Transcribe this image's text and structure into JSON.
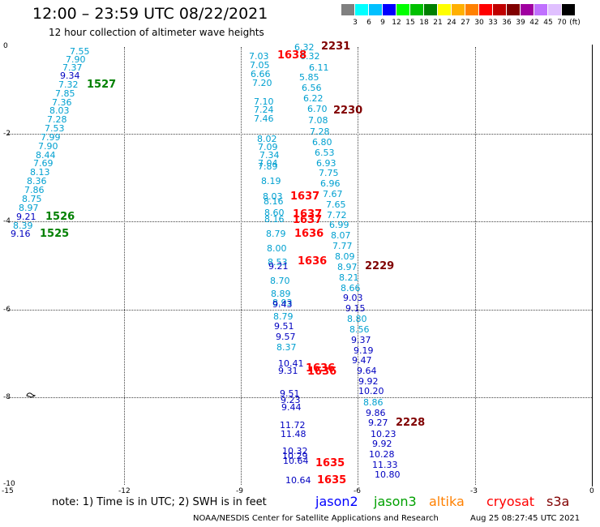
{
  "header": {
    "title": "12:00 – 23:59 UTC 08/22/2021",
    "subtitle": "12 hour collection of altimeter wave heights"
  },
  "legend": {
    "unit": "(ft)",
    "colors": [
      "#808080",
      "#00ffff",
      "#00c0ff",
      "#0000ff",
      "#00ff00",
      "#00c000",
      "#008000",
      "#ffff00",
      "#ffb000",
      "#ff8000",
      "#ff0000",
      "#c00000",
      "#800000",
      "#a000a0",
      "#c070ff",
      "#e0c0ff",
      "#000000"
    ],
    "labels": [
      "3",
      "6",
      "9",
      "12",
      "15",
      "18",
      "21",
      "24",
      "27",
      "30",
      "33",
      "36",
      "39",
      "42",
      "45",
      "70"
    ]
  },
  "axes": {
    "y_ticks": [
      "0",
      "-2",
      "-4",
      "-6",
      "-8",
      "-10"
    ],
    "x_ticks": [
      "-15",
      "-12",
      "-9",
      "-6",
      "-3",
      "0"
    ]
  },
  "observations": [
    {
      "text": "7.55",
      "color": "#00a0d0"
    },
    {
      "text": "7.90",
      "color": "#00a0d0"
    },
    {
      "text": "7.37",
      "color": "#00a0d0"
    },
    {
      "text": "9.34",
      "color": "#0000c0"
    },
    {
      "text": "7.32",
      "color": "#00a0d0"
    },
    {
      "text": "7.85",
      "color": "#00a0d0"
    },
    {
      "text": "7.36",
      "color": "#00a0d0"
    },
    {
      "text": "8.03",
      "color": "#00a0d0"
    },
    {
      "text": "7.28",
      "color": "#00a0d0"
    },
    {
      "text": "7.53",
      "color": "#00a0d0"
    },
    {
      "text": "7.99",
      "color": "#00a0d0"
    },
    {
      "text": "7.90",
      "color": "#00a0d0"
    },
    {
      "text": "8.44",
      "color": "#00a0d0"
    },
    {
      "text": "7.69",
      "color": "#00a0d0"
    },
    {
      "text": "8.13",
      "color": "#00a0d0"
    },
    {
      "text": "8.36",
      "color": "#00a0d0"
    },
    {
      "text": "7.86",
      "color": "#00a0d0"
    },
    {
      "text": "8.75",
      "color": "#00a0d0"
    },
    {
      "text": "8.97",
      "color": "#00a0d0"
    },
    {
      "text": "9.21",
      "color": "#0000c0"
    },
    {
      "text": "8.39",
      "color": "#00a0d0"
    },
    {
      "text": "9.16",
      "color": "#0000c0"
    },
    {
      "text": "6.32",
      "color": "#00a0d0"
    },
    {
      "text": "7.03",
      "color": "#00a0d0"
    },
    {
      "text": "6.32",
      "color": "#00a0d0"
    },
    {
      "text": "7.05",
      "color": "#00a0d0"
    },
    {
      "text": "6.11",
      "color": "#00a0d0"
    },
    {
      "text": "6.66",
      "color": "#00a0d0"
    },
    {
      "text": "5.85",
      "color": "#00a0d0"
    },
    {
      "text": "7.20",
      "color": "#00a0d0"
    },
    {
      "text": "6.56",
      "color": "#00a0d0"
    },
    {
      "text": "6.22",
      "color": "#00a0d0"
    },
    {
      "text": "7.10",
      "color": "#00a0d0"
    },
    {
      "text": "7.24",
      "color": "#00a0d0"
    },
    {
      "text": "6.70",
      "color": "#00a0d0"
    },
    {
      "text": "7.46",
      "color": "#00a0d0"
    },
    {
      "text": "7.08",
      "color": "#00a0d0"
    },
    {
      "text": "7.28",
      "color": "#00a0d0"
    },
    {
      "text": "8.02",
      "color": "#00a0d0"
    },
    {
      "text": "6.80",
      "color": "#00a0d0"
    },
    {
      "text": "7.09",
      "color": "#00a0d0"
    },
    {
      "text": "7.34",
      "color": "#00a0d0"
    },
    {
      "text": "6.53",
      "color": "#00a0d0"
    },
    {
      "text": "7.04",
      "color": "#00a0d0"
    },
    {
      "text": "6.93",
      "color": "#00a0d0"
    },
    {
      "text": "7.89",
      "color": "#00a0d0"
    },
    {
      "text": "7.75",
      "color": "#00a0d0"
    },
    {
      "text": "8.19",
      "color": "#00a0d0"
    },
    {
      "text": "6.96",
      "color": "#00a0d0"
    },
    {
      "text": "8.03",
      "color": "#00a0d0"
    },
    {
      "text": "7.67",
      "color": "#00a0d0"
    },
    {
      "text": "8.16",
      "color": "#00a0d0"
    },
    {
      "text": "7.65",
      "color": "#00a0d0"
    },
    {
      "text": "8.60",
      "color": "#00a0d0"
    },
    {
      "text": "7.72",
      "color": "#00a0d0"
    },
    {
      "text": "8.16",
      "color": "#00a0d0"
    },
    {
      "text": "6.99",
      "color": "#00a0d0"
    },
    {
      "text": "8.79",
      "color": "#00a0d0"
    },
    {
      "text": "8.07",
      "color": "#00a0d0"
    },
    {
      "text": "7.77",
      "color": "#00a0d0"
    },
    {
      "text": "8.00",
      "color": "#00a0d0"
    },
    {
      "text": "8.09",
      "color": "#00a0d0"
    },
    {
      "text": "8.53",
      "color": "#00a0d0"
    },
    {
      "text": "9.21",
      "color": "#0000c0"
    },
    {
      "text": "8.97",
      "color": "#00a0d0"
    },
    {
      "text": "8.21",
      "color": "#00a0d0"
    },
    {
      "text": "8.70",
      "color": "#00a0d0"
    },
    {
      "text": "8.66",
      "color": "#00a0d0"
    },
    {
      "text": "8.89",
      "color": "#00a0d0"
    },
    {
      "text": "9.03",
      "color": "#0000c0"
    },
    {
      "text": "8.93",
      "color": "#00a0d0"
    },
    {
      "text": "9.43",
      "color": "#0000c0"
    },
    {
      "text": "9.15",
      "color": "#0000c0"
    },
    {
      "text": "8.79",
      "color": "#00a0d0"
    },
    {
      "text": "8.80",
      "color": "#00a0d0"
    },
    {
      "text": "9.51",
      "color": "#0000c0"
    },
    {
      "text": "8.56",
      "color": "#00a0d0"
    },
    {
      "text": "9.57",
      "color": "#0000c0"
    },
    {
      "text": "9.37",
      "color": "#0000c0"
    },
    {
      "text": "8.37",
      "color": "#00a0d0"
    },
    {
      "text": "9.19",
      "color": "#0000c0"
    },
    {
      "text": "10.41",
      "color": "#0000c0"
    },
    {
      "text": "9.47",
      "color": "#0000c0"
    },
    {
      "text": "9.31",
      "color": "#0000c0"
    },
    {
      "text": "9.64",
      "color": "#0000c0"
    },
    {
      "text": "9.92",
      "color": "#0000c0"
    },
    {
      "text": "10.20",
      "color": "#0000c0"
    },
    {
      "text": "9.51",
      "color": "#0000c0"
    },
    {
      "text": "9.23",
      "color": "#0000c0"
    },
    {
      "text": "8.86",
      "color": "#00a0d0"
    },
    {
      "text": "9.44",
      "color": "#0000c0"
    },
    {
      "text": "9.86",
      "color": "#0000c0"
    },
    {
      "text": "9.27",
      "color": "#0000c0"
    },
    {
      "text": "11.72",
      "color": "#0000c0"
    },
    {
      "text": "11.48",
      "color": "#0000c0"
    },
    {
      "text": "10.23",
      "color": "#0000c0"
    },
    {
      "text": "9.92",
      "color": "#0000c0"
    },
    {
      "text": "10.32",
      "color": "#0000c0"
    },
    {
      "text": "10.28",
      "color": "#0000c0"
    },
    {
      "text": "10.29",
      "color": "#0000c0"
    },
    {
      "text": "10.64",
      "color": "#0000c0"
    },
    {
      "text": "11.33",
      "color": "#0000c0"
    },
    {
      "text": "10.80",
      "color": "#0000c0"
    },
    {
      "text": "10.64",
      "color": "#0000c0"
    }
  ],
  "times": [
    {
      "text": "1527",
      "color": "#008000"
    },
    {
      "text": "1526",
      "color": "#008000"
    },
    {
      "text": "1525",
      "color": "#008000"
    },
    {
      "text": "1638",
      "color": "#ff0000"
    },
    {
      "text": "2231",
      "color": "#800000"
    },
    {
      "text": "2230",
      "color": "#800000"
    },
    {
      "text": "1637",
      "color": "#ff0000"
    },
    {
      "text": "1637",
      "color": "#ff0000"
    },
    {
      "text": "1637",
      "color": "#ff0000"
    },
    {
      "text": "1636",
      "color": "#ff0000"
    },
    {
      "text": "1636",
      "color": "#ff0000"
    },
    {
      "text": "2229",
      "color": "#800000"
    },
    {
      "text": "1636",
      "color": "#ff0000"
    },
    {
      "text": "1636",
      "color": "#ff0000"
    },
    {
      "text": "2228",
      "color": "#800000"
    },
    {
      "text": "1635",
      "color": "#ff0000"
    },
    {
      "text": "1635",
      "color": "#ff0000"
    }
  ],
  "note": "note: 1) Time is in UTC; 2) SWH is in feet",
  "satellites": [
    {
      "name": "jason2",
      "color": "#0000ff"
    },
    {
      "name": "jason3",
      "color": "#00a000"
    },
    {
      "name": "altika",
      "color": "#ff8000"
    },
    {
      "name": "cryosat",
      "color": "#ff0000"
    },
    {
      "name": "s3a",
      "color": "#800000"
    }
  ],
  "footer": {
    "credit": "NOAA/NESDIS Center for Satellite Applications and Research",
    "timestamp": "Aug 25 08:27:45 UTC 2021"
  }
}
